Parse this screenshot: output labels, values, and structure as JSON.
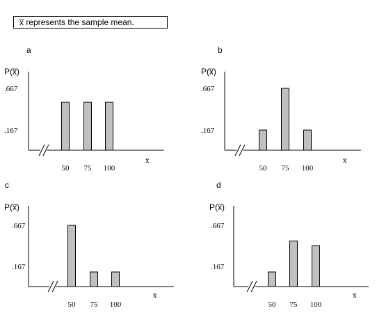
{
  "legend_text": "x̅ represents the sample mean.",
  "chart_data": [
    {
      "type": "bar",
      "panel": "a",
      "ylabel": "P(x̅)",
      "xlabel": "x̅",
      "categories": [
        "50",
        "75",
        "100"
      ],
      "values": [
        0.5,
        0.5,
        0.5
      ],
      "yticks": [
        ".667",
        ".167"
      ],
      "ytick_values": [
        0.667,
        0.167
      ]
    },
    {
      "type": "bar",
      "panel": "b",
      "ylabel": "P(x̅)",
      "xlabel": "x̅",
      "categories": [
        "50",
        "75",
        "100"
      ],
      "values": [
        0.167,
        0.667,
        0.167
      ],
      "yticks": [
        ".667",
        ".167"
      ],
      "ytick_values": [
        0.667,
        0.167
      ]
    },
    {
      "type": "bar",
      "panel": "c",
      "ylabel": "P(x̅)",
      "xlabel": "x̅",
      "categories": [
        "50",
        "75",
        "100"
      ],
      "values": [
        0.667,
        0.167,
        0.167
      ],
      "yticks": [
        ".667",
        ".167"
      ],
      "ytick_values": [
        0.667,
        0.167
      ]
    },
    {
      "type": "bar",
      "panel": "d",
      "ylabel": "P(x̅)",
      "xlabel": "x̅",
      "categories": [
        "50",
        "75",
        "100"
      ],
      "values": [
        0.167,
        0.5,
        0.45
      ],
      "yticks": [
        ".667",
        ".167"
      ],
      "ytick_values": [
        0.667,
        0.167
      ]
    }
  ],
  "colors": {
    "bar_fill": "#c0c0c0",
    "bar_stroke": "#000000",
    "axis": "#000000"
  }
}
